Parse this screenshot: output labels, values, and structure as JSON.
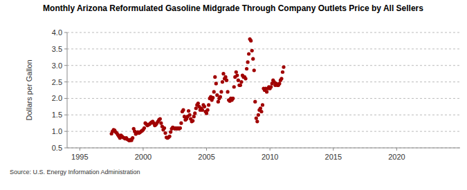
{
  "chart_data": {
    "type": "scatter",
    "title": "Monthly Arizona Reformulated Gasoline Midgrade Through Company Outlets Price by All Sellers",
    "y_label": "Dollars per Gallon",
    "source": "Source: U.S. Energy Information Administration",
    "color": "#a00000",
    "marker": "circle",
    "grid": true,
    "xlim": [
      1994,
      2025
    ],
    "xticks": [
      1995,
      2000,
      2005,
      2010,
      2015,
      2020
    ],
    "ylim": [
      0.5,
      4.0
    ],
    "yticks": [
      0.5,
      1.0,
      1.5,
      2.0,
      2.5,
      3.0,
      3.5,
      4.0
    ],
    "yticklabels": [
      "0.5",
      "1.0",
      "1.5",
      "2.0",
      "2.5",
      "3.0",
      "3.5",
      "4.0"
    ],
    "x": [
      1997.5,
      1997.583,
      1997.667,
      1997.75,
      1997.833,
      1997.917,
      1998,
      1998.083,
      1998.167,
      1998.25,
      1998.333,
      1998.417,
      1998.5,
      1998.583,
      1998.667,
      1998.75,
      1998.833,
      1998.917,
      1999,
      1999.083,
      1999.167,
      1999.25,
      1999.333,
      1999.417,
      1999.5,
      1999.583,
      1999.667,
      1999.75,
      1999.833,
      1999.917,
      2000,
      2000.083,
      2000.167,
      2000.25,
      2000.333,
      2000.417,
      2000.5,
      2000.583,
      2000.667,
      2000.75,
      2000.833,
      2000.917,
      2001,
      2001.083,
      2001.167,
      2001.25,
      2001.333,
      2001.417,
      2001.5,
      2001.583,
      2001.667,
      2001.75,
      2001.833,
      2001.917,
      2002,
      2002.083,
      2002.167,
      2002.25,
      2002.333,
      2002.417,
      2002.5,
      2002.583,
      2002.667,
      2002.75,
      2002.833,
      2002.917,
      2003,
      2003.083,
      2003.167,
      2003.25,
      2003.333,
      2003.417,
      2003.5,
      2003.583,
      2003.667,
      2003.75,
      2003.833,
      2003.917,
      2004,
      2004.083,
      2004.167,
      2004.25,
      2004.333,
      2004.417,
      2004.5,
      2004.583,
      2004.667,
      2004.75,
      2004.833,
      2004.917,
      2005,
      2005.083,
      2005.167,
      2005.25,
      2005.333,
      2005.417,
      2005.5,
      2005.583,
      2005.667,
      2005.75,
      2005.833,
      2005.917,
      2006,
      2006.083,
      2006.167,
      2006.25,
      2006.333,
      2006.417,
      2006.5,
      2006.583,
      2006.667,
      2006.75,
      2006.833,
      2006.917,
      2007,
      2007.083,
      2007.167,
      2007.25,
      2007.333,
      2007.417,
      2007.5,
      2007.583,
      2007.667,
      2007.75,
      2007.833,
      2007.917,
      2008,
      2008.083,
      2008.167,
      2008.25,
      2008.333,
      2008.417,
      2008.5,
      2008.583,
      2008.667,
      2008.75,
      2008.833,
      2008.917,
      2009,
      2009.083,
      2009.167,
      2009.25,
      2009.333,
      2009.417,
      2009.5,
      2009.583,
      2009.667,
      2009.75,
      2009.833,
      2009.917,
      2010,
      2010.083,
      2010.167,
      2010.25,
      2010.333,
      2010.417,
      2010.5,
      2010.583,
      2010.667,
      2010.75,
      2010.833,
      2010.917,
      2011,
      2011.083
    ],
    "values": [
      0.93,
      1.0,
      1.05,
      1.03,
      0.98,
      0.95,
      0.9,
      0.85,
      0.8,
      0.88,
      0.85,
      0.82,
      0.8,
      0.78,
      0.8,
      0.76,
      0.74,
      0.72,
      0.75,
      0.73,
      0.8,
      1.08,
      1.0,
      0.92,
      0.95,
      0.98,
      0.95,
      0.97,
      1.0,
      1.02,
      1.05,
      1.1,
      1.25,
      1.22,
      1.18,
      1.2,
      1.22,
      1.25,
      1.28,
      1.3,
      1.25,
      1.18,
      1.2,
      1.25,
      1.3,
      1.35,
      1.38,
      1.25,
      1.15,
      1.05,
      1.1,
      0.95,
      0.82,
      0.8,
      0.82,
      0.85,
      0.98,
      1.08,
      1.12,
      1.1,
      1.08,
      1.1,
      1.08,
      1.1,
      1.08,
      1.1,
      1.25,
      1.6,
      1.65,
      1.45,
      1.35,
      1.38,
      1.45,
      1.62,
      1.5,
      1.38,
      1.3,
      1.32,
      1.45,
      1.55,
      1.7,
      1.8,
      1.85,
      1.75,
      1.65,
      1.7,
      1.65,
      1.8,
      1.75,
      1.6,
      1.55,
      1.65,
      1.8,
      2.0,
      2.05,
      1.95,
      2.02,
      2.2,
      2.65,
      2.45,
      2.1,
      1.9,
      2.0,
      2.05,
      2.2,
      2.5,
      2.75,
      2.6,
      2.65,
      2.55,
      2.2,
      1.95,
      1.92,
      2.0,
      1.95,
      2.0,
      2.35,
      2.65,
      2.8,
      2.7,
      2.55,
      2.4,
      2.4,
      2.5,
      2.7,
      2.65,
      2.65,
      2.6,
      2.9,
      3.1,
      3.35,
      3.8,
      3.75,
      3.45,
      3.2,
      2.85,
      1.9,
      1.4,
      1.3,
      1.5,
      1.65,
      1.7,
      1.6,
      1.8,
      2.3,
      2.25,
      2.3,
      2.2,
      2.3,
      2.35,
      2.3,
      2.35,
      2.45,
      2.55,
      2.5,
      2.4,
      2.45,
      2.4,
      2.4,
      2.45,
      2.55,
      2.6,
      2.8,
      2.95
    ]
  }
}
